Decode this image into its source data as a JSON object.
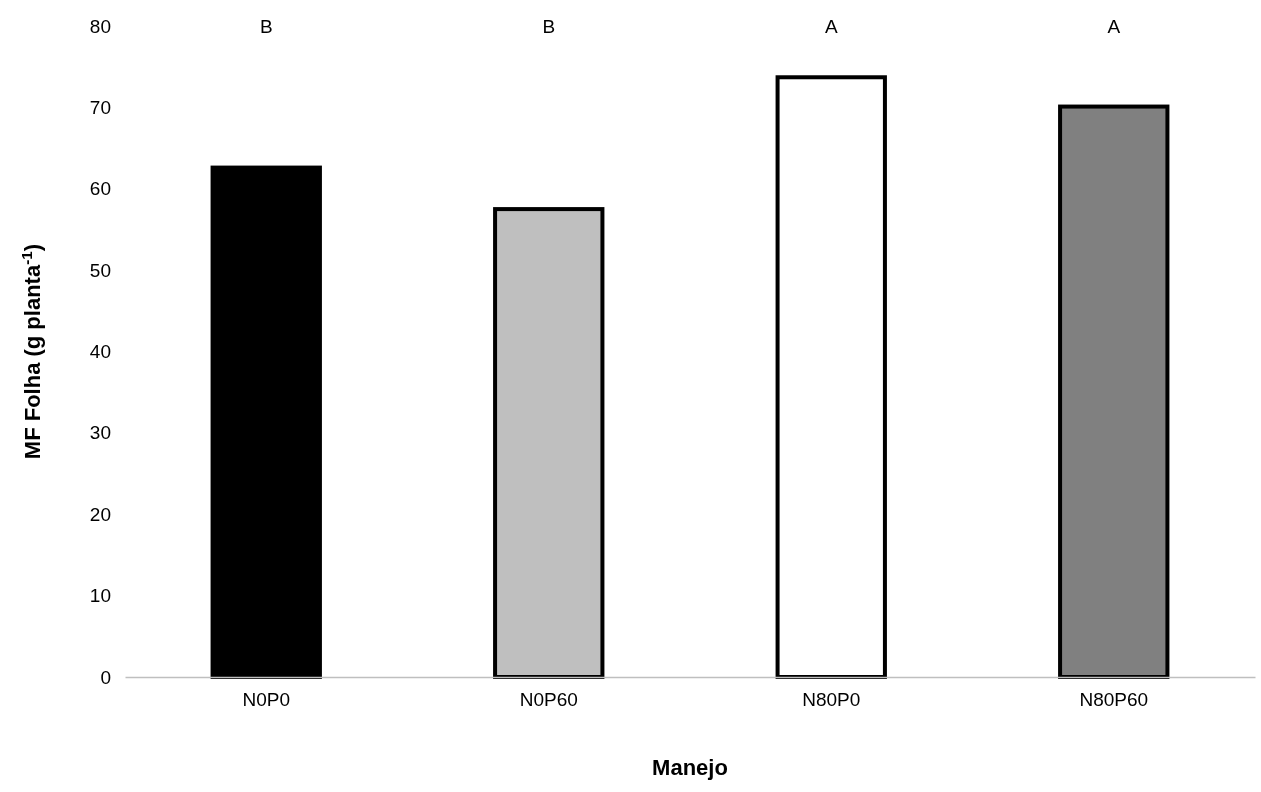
{
  "chart_data": {
    "type": "bar",
    "xlabel": "Manejo",
    "ylabel": "MF Folha (g planta$^{-1}$)",
    "categories": [
      "N0P0",
      "N0P60",
      "N80P0",
      "N80P60"
    ],
    "values": [
      62.6,
      57.5,
      73.7,
      70.1
    ],
    "colors": [
      "#000000",
      "#bfbfbf",
      "#ffffff",
      "#808080"
    ],
    "ylim": [
      0,
      80
    ],
    "yticks": [
      0,
      10,
      20,
      30,
      40,
      50,
      60,
      70,
      80
    ],
    "grid": false,
    "annotations": [
      "B",
      "B",
      "A",
      "A"
    ]
  }
}
